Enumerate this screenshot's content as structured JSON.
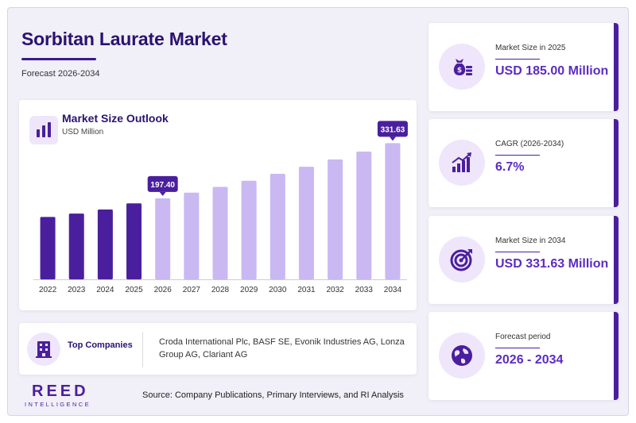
{
  "header": {
    "title": "Sorbitan Laurate Market",
    "subtitle": "Forecast 2026-2034"
  },
  "chart_panel": {
    "title": "Market Size Outlook",
    "unit": "USD Million",
    "icon": "bar-chart-icon"
  },
  "chart_data": {
    "type": "bar",
    "title": "Market Size Outlook",
    "ylabel": "USD Million",
    "categories": [
      "2022",
      "2023",
      "2024",
      "2025",
      "2026",
      "2027",
      "2028",
      "2029",
      "2030",
      "2031",
      "2032",
      "2033",
      "2034"
    ],
    "values": [
      152,
      160,
      170,
      185,
      197.4,
      211,
      225,
      240,
      257,
      274,
      292,
      311,
      331.63
    ],
    "historical_through": "2025",
    "data_labels": [
      {
        "category": "2026",
        "text": "197.40"
      },
      {
        "category": "2034",
        "text": "331.63"
      }
    ],
    "ylim": [
      0,
      340
    ],
    "grid": false,
    "colors": {
      "historical": "#4a1f9e",
      "forecast": "#c9b8f2",
      "label_bg": "#4a1f9e"
    }
  },
  "companies": {
    "label": "Top Companies",
    "text": "Croda International Plc, BASF SE, Evonik Industries AG, Lonza Group AG, Clariant AG",
    "icon": "building-icon"
  },
  "logo": {
    "name": "REED",
    "tagline": "INTELLIGENCE"
  },
  "source": "Source: Company Publications, Primary Interviews, and RI Analysis",
  "kpis": [
    {
      "label": "Market Size in 2025",
      "value": "USD 185.00 Million",
      "icon": "money-bag-icon"
    },
    {
      "label": "CAGR (2026-2034)",
      "value": "6.7%",
      "icon": "growth-chart-icon"
    },
    {
      "label": "Market Size in 2034",
      "value": "USD 331.63 Million",
      "icon": "target-icon"
    },
    {
      "label": "Forecast period",
      "value": "2026 - 2034",
      "icon": "globe-icon"
    }
  ],
  "colors": {
    "primary": "#2a1270",
    "accent": "#4a1f9e",
    "value": "#5b2cc4",
    "light": "#efe6fb"
  }
}
